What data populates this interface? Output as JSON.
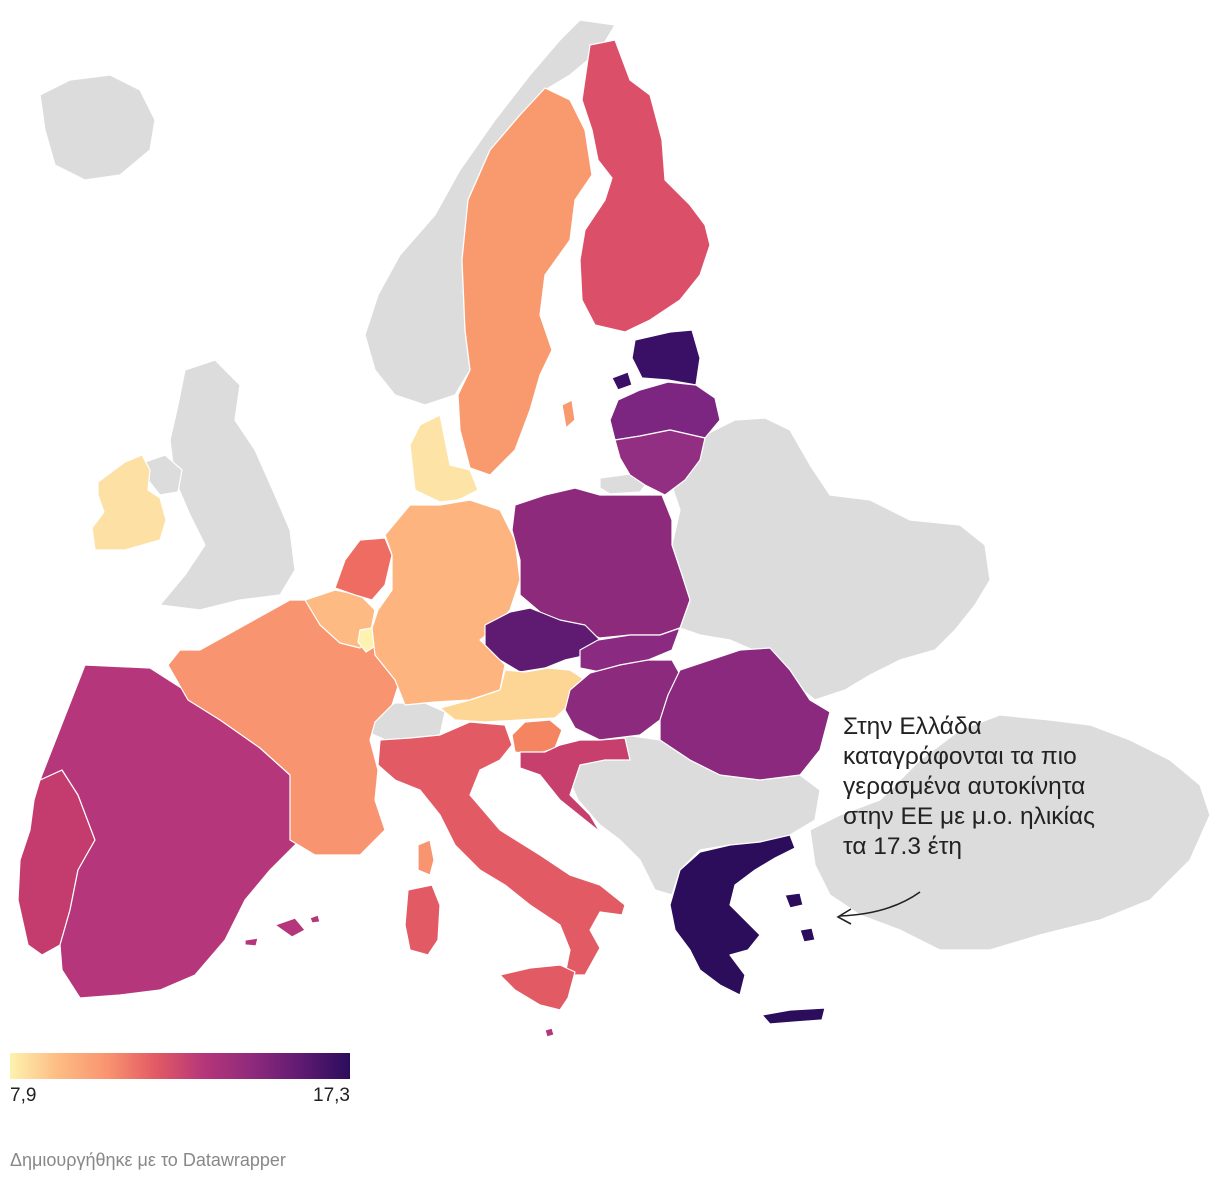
{
  "map": {
    "colors": {
      "no_data": "#dcdcdc",
      "scale": [
        "#fde9a9",
        "#fdbb83",
        "#f99470",
        "#e25a64",
        "#b5367a",
        "#8e2a7c",
        "#5f1a72",
        "#2b0d5c"
      ]
    },
    "countries": [
      {
        "name": "iceland-no-data",
        "fill": "no_data"
      },
      {
        "name": "norway-no-data",
        "fill": "no_data"
      },
      {
        "name": "uk-no-data",
        "fill": "no_data"
      },
      {
        "name": "northern-ireland-no-data",
        "fill": "no_data"
      },
      {
        "name": "switzerland-no-data",
        "fill": "no_data"
      },
      {
        "name": "eastern-europe-no-data",
        "fill": "no_data"
      },
      {
        "name": "balkans-no-data",
        "fill": "no_data"
      },
      {
        "name": "turkey-no-data",
        "fill": "no_data"
      },
      {
        "name": "kaliningrad-no-data",
        "fill": "no_data"
      },
      {
        "name": "ireland",
        "fill": "#fde0a3"
      },
      {
        "name": "portugal",
        "fill": "#c43c6e"
      },
      {
        "name": "spain",
        "fill": "#b5367a"
      },
      {
        "name": "france",
        "fill": "#f99470"
      },
      {
        "name": "belgium",
        "fill": "#fdbb83"
      },
      {
        "name": "netherlands",
        "fill": "#ee6c62"
      },
      {
        "name": "luxembourg",
        "fill": "#fdf2b0"
      },
      {
        "name": "germany",
        "fill": "#fdb47f"
      },
      {
        "name": "denmark",
        "fill": "#fde3a5"
      },
      {
        "name": "sweden",
        "fill": "#f99a6e"
      },
      {
        "name": "finland",
        "fill": "#db4f69"
      },
      {
        "name": "estonia",
        "fill": "#3a1066"
      },
      {
        "name": "latvia",
        "fill": "#7d2681"
      },
      {
        "name": "lithuania",
        "fill": "#932f82"
      },
      {
        "name": "poland",
        "fill": "#8e2a7c"
      },
      {
        "name": "czechia",
        "fill": "#5f1a72"
      },
      {
        "name": "slovakia",
        "fill": "#8a2a80"
      },
      {
        "name": "austria",
        "fill": "#fdd696"
      },
      {
        "name": "hungary",
        "fill": "#8c2b7e"
      },
      {
        "name": "romania",
        "fill": "#8a297e"
      },
      {
        "name": "slovenia",
        "fill": "#f48560"
      },
      {
        "name": "croatia",
        "fill": "#c7406d"
      },
      {
        "name": "italy",
        "fill": "#e25a64"
      },
      {
        "name": "sardinia",
        "fill": "#e25a64"
      },
      {
        "name": "sicily",
        "fill": "#e25a64"
      },
      {
        "name": "corsica",
        "fill": "#f99470"
      },
      {
        "name": "malta",
        "fill": "#b5367a"
      },
      {
        "name": "balearics",
        "fill": "#b5367a"
      },
      {
        "name": "greece",
        "fill": "#2b0d5c"
      },
      {
        "name": "crete",
        "fill": "#2b0d5c"
      },
      {
        "name": "gotland",
        "fill": "#f99a6e"
      },
      {
        "name": "saaremaa",
        "fill": "#3a1066"
      }
    ]
  },
  "annotation": {
    "lines": [
      "Στην Ελλάδα",
      "καταγράφονται τα πιο",
      "γερασμένα αυτοκίνητα",
      "στην ΕΕ με μ.ο. ηλικίας",
      "τα 17.3 έτη"
    ]
  },
  "legend": {
    "min_label": "7,9",
    "max_label": "17,3",
    "gradient": [
      "#fdf2b0",
      "#fdbb83",
      "#f99470",
      "#e25a64",
      "#b5367a",
      "#8e2a7c",
      "#5f1a72",
      "#2b0d5c"
    ]
  },
  "credit": "Δημιουργήθηκε με το Datawrapper"
}
